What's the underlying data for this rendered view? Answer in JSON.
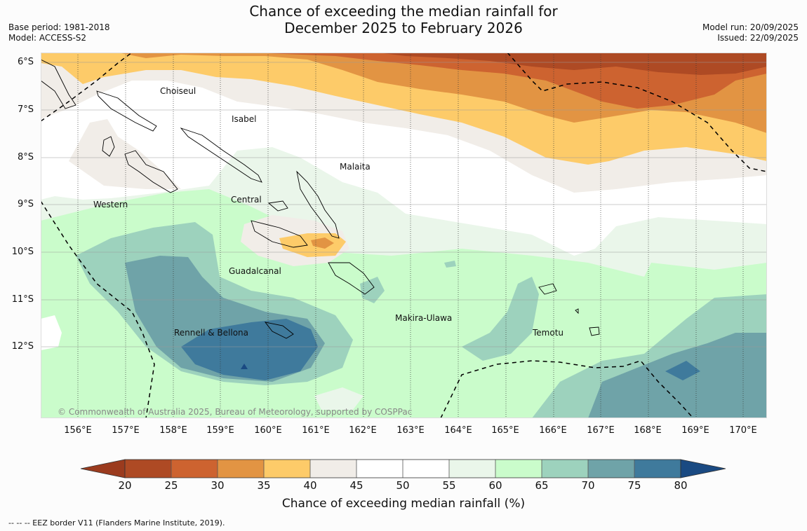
{
  "title": {
    "line1": "Chance of exceeding the median rainfall for",
    "line2": "December 2025 to February 2026"
  },
  "meta_left": {
    "base_period": "Base period: 1981-2018",
    "model": "Model: ACCESS-S2"
  },
  "meta_right": {
    "model_run": "Model run: 20/09/2025",
    "issued": "Issued: 22/09/2025"
  },
  "map": {
    "lat_labels": [
      "6°S",
      "7°S",
      "8°S",
      "9°S",
      "10°S",
      "11°S",
      "12°S"
    ],
    "lon_labels": [
      "156°E",
      "157°E",
      "158°E",
      "159°E",
      "160°E",
      "161°E",
      "162°E",
      "163°E",
      "164°E",
      "165°E",
      "166°E",
      "167°E",
      "168°E",
      "169°E",
      "170°E"
    ],
    "places": {
      "choiseul": "Choiseul",
      "isabel": "Isabel",
      "malaita": "Malaita",
      "western": "Western",
      "central": "Central",
      "guadalcanal": "Guadalcanal",
      "rennell": "Rennell & Bellona",
      "makira": "Makira-Ulawa",
      "temotu": "Temotu"
    },
    "copyright": "© Commonwealth of Australia 2025, Bureau of Meteorology, supported by COSPPac"
  },
  "colorbar": {
    "title": "Chance of exceeding median rainfall (%)",
    "ticks": [
      "20",
      "25",
      "30",
      "35",
      "40",
      "45",
      "50",
      "55",
      "60",
      "65",
      "70",
      "75",
      "80"
    ],
    "colors": {
      "lt20": "#9b3b1e",
      "20_25": "#ae4a24",
      "25_30": "#cd6330",
      "30_35": "#e29443",
      "35_40": "#fdcb69",
      "40_45": "#f1ede8",
      "45_50": "#ffffff",
      "50_55": "#ffffff",
      "55_60": "#eaf6ea",
      "60_65": "#cafccb",
      "65_70": "#9dd2bd",
      "70_75": "#6fa3a8",
      "75_80": "#3f7a9c",
      "gt80": "#1a4a82"
    }
  },
  "footnote": "--  --  -- EEZ border V11 (Flanders Marine Institute, 2019)."
}
